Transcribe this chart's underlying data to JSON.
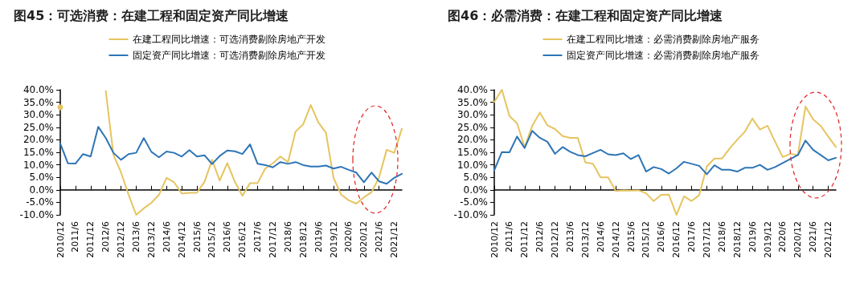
{
  "chart_data": [
    {
      "type": "line",
      "title": "图45：可选消费：在建工程和固定资产同比增速",
      "legend": "top",
      "categories": [
        "2010/12",
        null,
        "2011/6",
        null,
        "2011/12",
        null,
        "2012/6",
        null,
        "2012/12",
        null,
        "2013/6",
        null,
        "2013/12",
        null,
        "2014/6",
        null,
        "2014/12",
        null,
        "2015/6",
        null,
        "2015/12",
        null,
        "2016/6",
        null,
        "2016/12",
        null,
        "2017/6",
        null,
        "2017/12",
        null,
        "2018/6",
        null,
        "2018/12",
        null,
        "2019/6",
        null,
        "2019/12",
        null,
        "2020/6",
        null,
        "2020/12",
        null,
        "2021/6",
        null,
        "2021/12",
        null
      ],
      "ylim": [
        -10,
        40
      ],
      "yticks": [
        {
          "value": -10,
          "label": "-10.0%"
        },
        {
          "value": -5,
          "label": "-5.0%"
        },
        {
          "value": 0,
          "label": "0.0%"
        },
        {
          "value": 5,
          "label": "5.0%"
        },
        {
          "value": 10,
          "label": "10.0%"
        },
        {
          "value": 15,
          "label": "15.0%"
        },
        {
          "value": 20,
          "label": "20.0%"
        },
        {
          "value": 25,
          "label": "25.0%"
        },
        {
          "value": 30,
          "label": "30.0%"
        },
        {
          "value": 35,
          "label": "35.0%"
        },
        {
          "value": 40,
          "label": "40.0%"
        }
      ],
      "series": [
        {
          "name": "在建工程同比增速：可选消费剔除房地产开发",
          "color": "#e6c45f",
          "values": [
            33,
            null,
            null,
            null,
            null,
            null,
            39.5,
            14,
            7,
            -2,
            -10,
            -7.4,
            -5.2,
            -2,
            4.8,
            3,
            -1.5,
            -1.2,
            -1.2,
            3.2,
            12,
            3.7,
            10.7,
            3.2,
            -2.4,
            2.7,
            2.7,
            8.5,
            10.6,
            13.3,
            11.1,
            23.3,
            26.2,
            33.9,
            27,
            22.8,
            4.8,
            -1.9,
            -4.2,
            -5.5,
            -3,
            -1,
            5,
            16,
            14.8,
            24.4
          ]
        },
        {
          "name": "固定资产同比增速：可选消费剔除房地产开发",
          "color": "#2e75b6",
          "values": [
            18.5,
            10.6,
            10.5,
            14.3,
            13.3,
            25.2,
            20.7,
            14.8,
            12,
            14.3,
            14.8,
            20.7,
            15.2,
            13,
            15.3,
            14.8,
            13.3,
            15.9,
            13.3,
            13.8,
            10.3,
            13.5,
            15.7,
            15.4,
            14.3,
            18.2,
            10.4,
            9.9,
            9,
            11.1,
            10.4,
            11.1,
            9.9,
            9.3,
            9.3,
            9.7,
            8.5,
            9.2,
            8,
            6.9,
            3,
            6.9,
            3.4,
            2.4,
            4.8,
            6.4
          ]
        }
      ]
    },
    {
      "type": "line",
      "title": "图46：必需消费：在建工程和固定资产同比增速",
      "legend": "top",
      "categories": [
        "2010/12",
        null,
        "2011/6",
        null,
        "2011/12",
        null,
        "2012/6",
        null,
        "2012/12",
        null,
        "2013/6",
        null,
        "2013/12",
        null,
        "2014/6",
        null,
        "2014/12",
        null,
        "2015/6",
        null,
        "2015/12",
        null,
        "2016/6",
        null,
        "2016/12",
        null,
        "2017/6",
        null,
        "2017/12",
        null,
        "2018/6",
        null,
        "2018/12",
        null,
        "2019/6",
        null,
        "2019/12",
        null,
        "2020/6",
        null,
        "2020/12",
        null,
        "2021/6",
        null,
        "2021/12",
        null
      ],
      "ylim": [
        -10,
        40
      ],
      "yticks": [
        {
          "value": -10,
          "label": "-10.0%"
        },
        {
          "value": -5,
          "label": "-5.0%"
        },
        {
          "value": 0,
          "label": "0.0%"
        },
        {
          "value": 5,
          "label": "5.0%"
        },
        {
          "value": 10,
          "label": "10.0%"
        },
        {
          "value": 15,
          "label": "15.0%"
        },
        {
          "value": 20,
          "label": "20.0%"
        },
        {
          "value": 25,
          "label": "25.0%"
        },
        {
          "value": 30,
          "label": "30.0%"
        },
        {
          "value": 35,
          "label": "35.0%"
        },
        {
          "value": 40,
          "label": "40.0%"
        }
      ],
      "series": [
        {
          "name": "在建工程同比增速：必需消费剔除房地产服务",
          "color": "#e6c45f",
          "values": [
            35.1,
            40,
            29.5,
            26.6,
            17,
            25.6,
            30.9,
            25.8,
            24.3,
            21.5,
            20.8,
            20.8,
            10.9,
            10.4,
            5,
            5,
            -0.5,
            -0.2,
            -0.3,
            -0.2,
            -1.4,
            -4.5,
            -2,
            -1.9,
            -10,
            -2.6,
            -4.5,
            -2.1,
            9.3,
            12.5,
            12.5,
            16.5,
            20,
            23.2,
            28.5,
            24.1,
            25.6,
            19.2,
            13.1,
            14.4,
            13.9,
            33.3,
            28.2,
            25.6,
            21.3,
            17.1
          ]
        },
        {
          "name": "固定资产同比增速：必需消费剔除房地产服务",
          "color": "#2e75b6",
          "values": [
            7.8,
            15.1,
            15,
            21.3,
            16.7,
            23.6,
            20.8,
            19.2,
            14.4,
            17.1,
            15.2,
            13.9,
            13.4,
            14.7,
            16,
            14.2,
            13.9,
            14.6,
            12.3,
            13.9,
            7.3,
            9.1,
            8.3,
            6.5,
            8.6,
            11.2,
            10.4,
            9.6,
            6.2,
            9.8,
            8,
            8,
            7.3,
            8.8,
            8.8,
            10,
            8,
            9.1,
            10.7,
            12.3,
            13.9,
            19.7,
            16,
            13.9,
            11.8,
            12.8
          ]
        }
      ]
    }
  ]
}
